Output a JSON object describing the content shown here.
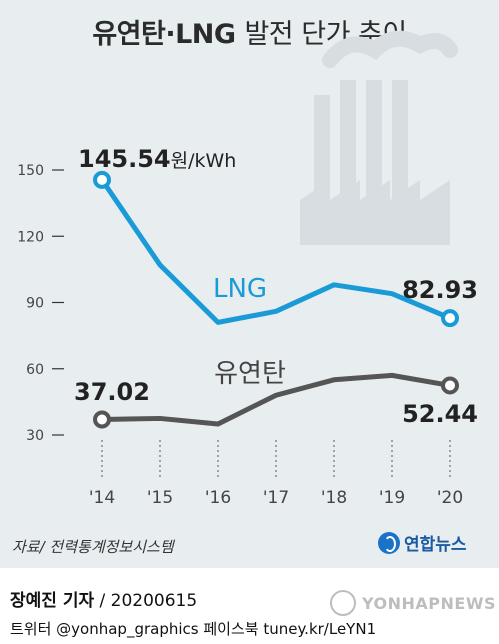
{
  "title_bold": "유연탄·LNG",
  "title_light": "발전 단가 추이",
  "unit_label": "원/kWh",
  "source": "자료/ 전력통계정보시스템",
  "logo_text": "연합뉴스",
  "credit_name": "장예진 기자",
  "credit_date": "/ 20200615",
  "social": "트위터 @yonhap_graphics  페이스북 tuney.kr/LeYN1",
  "watermark": "YONHAPNEWS",
  "colors": {
    "lng": "#1a9bd7",
    "coal": "#555555",
    "panel": "#e8eef0"
  },
  "chart_data": {
    "type": "line",
    "x": [
      "'14",
      "'15",
      "'16",
      "'17",
      "'18",
      "'19",
      "'20"
    ],
    "ylim": [
      30,
      150
    ],
    "yticks": [
      30,
      60,
      90,
      120,
      150
    ],
    "series": [
      {
        "name": "LNG",
        "values": [
          145.54,
          107,
          81,
          86,
          98,
          94,
          82.93
        ],
        "color": "#1a9bd7"
      },
      {
        "name": "유연탄",
        "values": [
          37.02,
          37.5,
          35,
          48,
          55,
          57,
          52.44
        ],
        "color": "#555555"
      }
    ],
    "annotations": [
      {
        "series": "LNG",
        "index": 0,
        "text": "145.54"
      },
      {
        "series": "LNG",
        "index": 6,
        "text": "82.93"
      },
      {
        "series": "유연탄",
        "index": 0,
        "text": "37.02"
      },
      {
        "series": "유연탄",
        "index": 6,
        "text": "52.44"
      }
    ],
    "grid": false,
    "legend": "inline labels"
  }
}
